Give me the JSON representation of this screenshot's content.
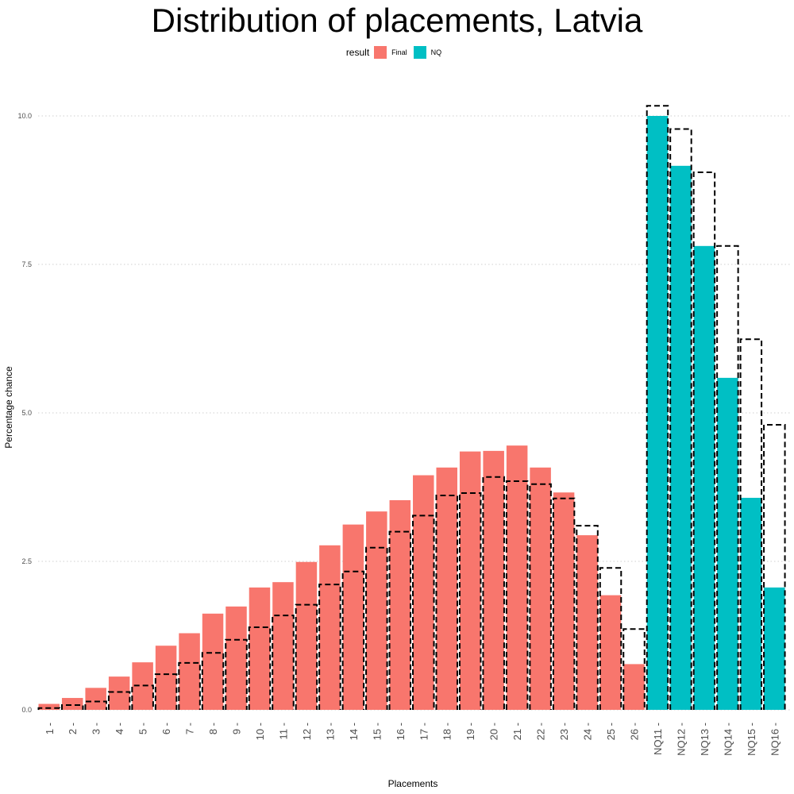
{
  "chart_data": {
    "type": "bar",
    "title": "Distribution of placements, Latvia",
    "xlabel": "Placements",
    "ylabel": "Percentage chance",
    "ylim": [
      0,
      10.6
    ],
    "yticks": [
      "0.0",
      "2.5",
      "5.0",
      "7.5",
      "10.0"
    ],
    "ytick_values": [
      0,
      2.5,
      5.0,
      7.5,
      10.0
    ],
    "grid": "horizontal dotted",
    "legend": {
      "title": "result",
      "placement": "top",
      "entries": [
        {
          "name": "Final",
          "color": "#F8766D"
        },
        {
          "name": "NQ",
          "color": "#00BFC4"
        }
      ]
    },
    "categories": [
      "1",
      "2",
      "3",
      "4",
      "5",
      "6",
      "7",
      "8",
      "9",
      "10",
      "11",
      "12",
      "13",
      "14",
      "15",
      "16",
      "17",
      "18",
      "19",
      "20",
      "21",
      "22",
      "23",
      "24",
      "25",
      "26",
      "NQ11",
      "NQ12",
      "NQ13",
      "NQ14",
      "NQ15",
      "NQ16"
    ],
    "series": [
      {
        "name": "result",
        "group": [
          "Final",
          "Final",
          "Final",
          "Final",
          "Final",
          "Final",
          "Final",
          "Final",
          "Final",
          "Final",
          "Final",
          "Final",
          "Final",
          "Final",
          "Final",
          "Final",
          "Final",
          "Final",
          "Final",
          "Final",
          "Final",
          "Final",
          "Final",
          "Final",
          "Final",
          "Final",
          "NQ",
          "NQ",
          "NQ",
          "NQ",
          "NQ",
          "NQ"
        ],
        "values": [
          0.1,
          0.2,
          0.37,
          0.56,
          0.8,
          1.08,
          1.29,
          1.62,
          1.74,
          2.06,
          2.15,
          2.49,
          2.77,
          3.12,
          3.34,
          3.53,
          3.95,
          4.08,
          4.35,
          4.36,
          4.45,
          4.08,
          3.66,
          2.94,
          1.93,
          0.77,
          10.0,
          9.16,
          7.81,
          5.59,
          3.57,
          2.06
        ]
      },
      {
        "name": "dashed outline",
        "style": "dashed",
        "values": [
          0.03,
          0.08,
          0.14,
          0.3,
          0.41,
          0.6,
          0.79,
          0.96,
          1.18,
          1.39,
          1.59,
          1.77,
          2.11,
          2.33,
          2.73,
          3.0,
          3.27,
          3.61,
          3.65,
          3.92,
          3.85,
          3.8,
          3.56,
          3.1,
          2.39,
          1.36,
          10.17,
          9.78,
          9.05,
          7.81,
          6.24,
          4.8
        ]
      }
    ]
  }
}
